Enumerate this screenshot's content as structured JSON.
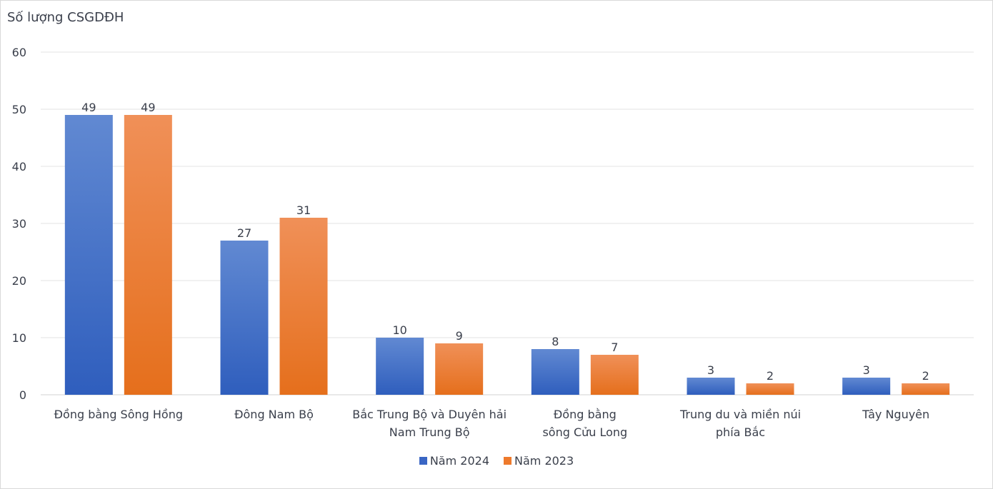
{
  "chart_data": {
    "type": "bar",
    "ylabel": "Số lượng CSGDĐH",
    "xlabel": "",
    "ylim": [
      0,
      60
    ],
    "yticks": [
      0,
      10,
      20,
      30,
      40,
      50,
      60
    ],
    "grid": true,
    "legend_position": "bottom",
    "categories": [
      [
        "Đồng bằng Sông Hồng"
      ],
      [
        "Đông Nam Bộ"
      ],
      [
        "Bắc Trung Bộ và Duyên hải",
        "Nam Trung Bộ"
      ],
      [
        "Đồng bằng",
        "sông Cửu Long"
      ],
      [
        "Trung du và miền núi",
        "phía Bắc"
      ],
      [
        "Tây Nguyên"
      ]
    ],
    "series": [
      {
        "name": "Năm 2024",
        "color": "#4472c4",
        "values": [
          49,
          27,
          10,
          8,
          3,
          3
        ]
      },
      {
        "name": "Năm 2023",
        "color": "#ed7d31",
        "values": [
          49,
          31,
          9,
          7,
          2,
          2
        ]
      }
    ]
  }
}
